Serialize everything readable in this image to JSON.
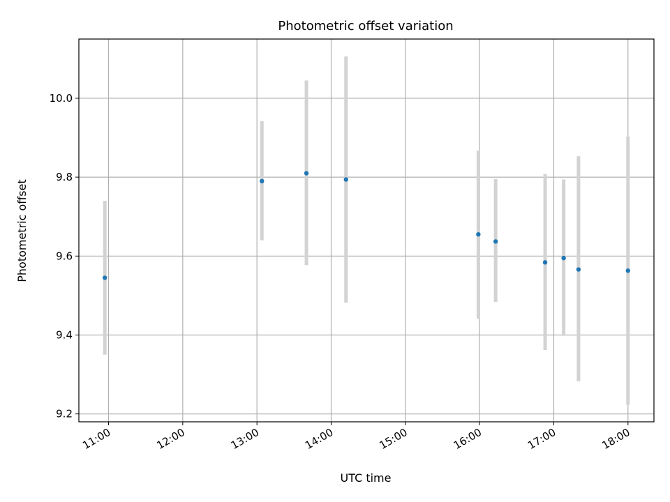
{
  "chart_data": {
    "type": "scatter",
    "title": "Photometric offset variation",
    "xlabel": "UTC time",
    "ylabel": "Photometric offset",
    "x_tick_labels": [
      "11:00",
      "12:00",
      "13:00",
      "14:00",
      "15:00",
      "16:00",
      "17:00",
      "18:00"
    ],
    "y_tick_labels": [
      "9.2",
      "9.4",
      "9.6",
      "9.8",
      "10.0"
    ],
    "y_ticks": [
      9.2,
      9.4,
      9.6,
      9.8,
      10.0
    ],
    "xlim": [
      "10:36",
      "18:21"
    ],
    "ylim": [
      9.18,
      10.15
    ],
    "grid": true,
    "point_color": "#1f77b4",
    "errorbar_color": "#d3d3d3",
    "series": [
      {
        "points": [
          {
            "time": "10:57",
            "y": 9.545,
            "yerr_low": 9.35,
            "yerr_high": 9.74
          },
          {
            "time": "13:04",
            "y": 9.79,
            "yerr_low": 9.64,
            "yerr_high": 9.942
          },
          {
            "time": "13:40",
            "y": 9.81,
            "yerr_low": 9.577,
            "yerr_high": 10.045
          },
          {
            "time": "14:12",
            "y": 9.794,
            "yerr_low": 9.482,
            "yerr_high": 10.106
          },
          {
            "time": "15:59",
            "y": 9.655,
            "yerr_low": 9.441,
            "yerr_high": 9.867
          },
          {
            "time": "16:13",
            "y": 9.637,
            "yerr_low": 9.484,
            "yerr_high": 9.795
          },
          {
            "time": "16:53",
            "y": 9.584,
            "yerr_low": 9.362,
            "yerr_high": 9.808
          },
          {
            "time": "17:08",
            "y": 9.595,
            "yerr_low": 9.398,
            "yerr_high": 9.794
          },
          {
            "time": "17:20",
            "y": 9.566,
            "yerr_low": 9.283,
            "yerr_high": 9.853
          },
          {
            "time": "18:00",
            "y": 9.563,
            "yerr_low": 9.223,
            "yerr_high": 9.903
          }
        ]
      }
    ]
  }
}
